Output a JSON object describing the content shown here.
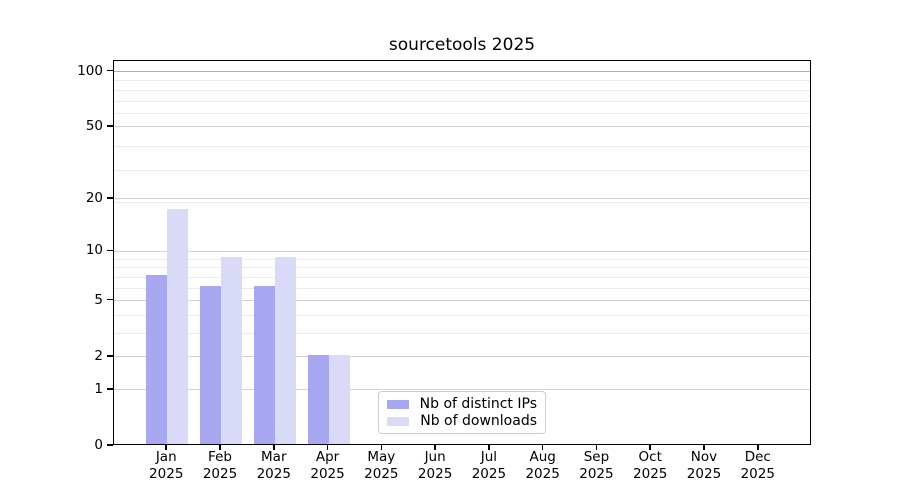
{
  "chart_data": {
    "type": "bar",
    "title": "sourcetools 2025",
    "year_label": "2025",
    "months": [
      "Jan",
      "Feb",
      "Mar",
      "Apr",
      "May",
      "Jun",
      "Jul",
      "Aug",
      "Sep",
      "Oct",
      "Nov",
      "Dec"
    ],
    "series": [
      {
        "name": "Nb of distinct IPs",
        "color": "#a8a8f2",
        "values": [
          7,
          6,
          6,
          2,
          0,
          0,
          0,
          0,
          0,
          0,
          0,
          0
        ]
      },
      {
        "name": "Nb of downloads",
        "color": "#d9d9f8",
        "values": [
          17,
          9,
          9,
          2,
          0,
          0,
          0,
          0,
          0,
          0,
          0,
          0
        ]
      }
    ],
    "yscale": "log1p",
    "yticks": [
      0,
      1,
      2,
      5,
      10,
      20,
      50,
      100
    ],
    "yticks_minor": [
      3,
      4,
      6,
      7,
      8,
      9,
      19,
      29,
      39,
      59,
      69,
      79,
      89
    ],
    "ylim": [
      0,
      114
    ],
    "grid": true,
    "legend_position": "lower-center",
    "colors": {
      "grid_major": "#d2d2d2",
      "grid_minor": "#ececec",
      "grid_top_emphasis": "#b0b0b0",
      "spine": "#000000",
      "text": "#000000",
      "background": "#ffffff"
    }
  }
}
